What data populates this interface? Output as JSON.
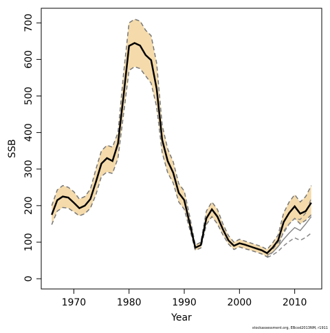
{
  "chart_data": {
    "type": "line",
    "x_label": "Year",
    "y_label": "SSB",
    "footnote": "stockassessment.org, EBcod2013NM, r1911",
    "x": [
      1966,
      1967,
      1968,
      1969,
      1970,
      1971,
      1972,
      1973,
      1974,
      1975,
      1976,
      1977,
      1978,
      1979,
      1980,
      1981,
      1982,
      1983,
      1984,
      1985,
      1986,
      1987,
      1988,
      1989,
      1990,
      1991,
      1992,
      1993,
      1994,
      1995,
      1996,
      1997,
      1998,
      1999,
      2000,
      2001,
      2002,
      2003,
      2004,
      2005,
      2006,
      2007,
      2008,
      2009,
      2010,
      2011,
      2012,
      2013
    ],
    "series": [
      {
        "color": "#000000",
        "band_color": "#f5dbab",
        "bound_color": "#777777",
        "values": [
          175,
          215,
          225,
          222,
          208,
          193,
          200,
          218,
          265,
          315,
          330,
          322,
          370,
          500,
          637,
          645,
          638,
          612,
          598,
          520,
          380,
          322,
          290,
          235,
          215,
          150,
          85,
          92,
          165,
          190,
          170,
          135,
          105,
          90,
          97,
          93,
          88,
          83,
          78,
          70,
          85,
          105,
          155,
          180,
          198,
          178,
          185,
          208
        ],
        "lower": [
          148,
          185,
          195,
          193,
          183,
          172,
          178,
          193,
          230,
          280,
          292,
          288,
          330,
          450,
          570,
          580,
          575,
          555,
          535,
          470,
          345,
          290,
          262,
          210,
          190,
          135,
          78,
          84,
          148,
          170,
          150,
          120,
          95,
          80,
          87,
          82,
          78,
          73,
          68,
          60,
          72,
          88,
          130,
          150,
          165,
          150,
          160,
          175
        ],
        "upper": [
          200,
          243,
          255,
          250,
          238,
          218,
          225,
          245,
          300,
          350,
          365,
          360,
          400,
          560,
          700,
          710,
          705,
          680,
          665,
          590,
          420,
          355,
          320,
          260,
          240,
          170,
          92,
          100,
          185,
          210,
          190,
          150,
          118,
          100,
          108,
          103,
          98,
          93,
          88,
          80,
          98,
          120,
          180,
          210,
          230,
          210,
          225,
          255
        ]
      },
      {
        "color": "#888888",
        "bound_color": "#888888",
        "values": [
          null,
          null,
          null,
          null,
          null,
          null,
          null,
          null,
          null,
          null,
          null,
          null,
          null,
          null,
          null,
          null,
          null,
          null,
          null,
          null,
          null,
          null,
          null,
          null,
          null,
          null,
          null,
          null,
          null,
          null,
          null,
          null,
          null,
          null,
          null,
          null,
          null,
          null,
          null,
          65,
          72,
          88,
          108,
          125,
          140,
          132,
          150,
          170
        ],
        "lower": [
          null,
          null,
          null,
          null,
          null,
          null,
          null,
          null,
          null,
          null,
          null,
          null,
          null,
          null,
          null,
          null,
          null,
          null,
          null,
          null,
          null,
          null,
          null,
          null,
          null,
          null,
          null,
          null,
          null,
          null,
          null,
          null,
          null,
          null,
          null,
          null,
          null,
          null,
          null,
          58,
          65,
          75,
          90,
          102,
          112,
          105,
          113,
          125
        ],
        "upper": [
          null,
          null,
          null,
          null,
          null,
          null,
          null,
          null,
          null,
          null,
          null,
          null,
          null,
          null,
          null,
          null,
          null,
          null,
          null,
          null,
          null,
          null,
          null,
          null,
          null,
          null,
          null,
          null,
          null,
          null,
          null,
          null,
          null,
          null,
          null,
          null,
          null,
          null,
          null,
          72,
          80,
          100,
          125,
          150,
          165,
          162,
          180,
          220
        ]
      }
    ],
    "xlim": [
      1964.1,
      2014.9
    ],
    "ylim": [
      -28,
      740
    ],
    "xticks": [
      1970,
      1980,
      1990,
      2000,
      2010
    ],
    "yticks": [
      0,
      100,
      200,
      300,
      400,
      500,
      600,
      700
    ]
  }
}
